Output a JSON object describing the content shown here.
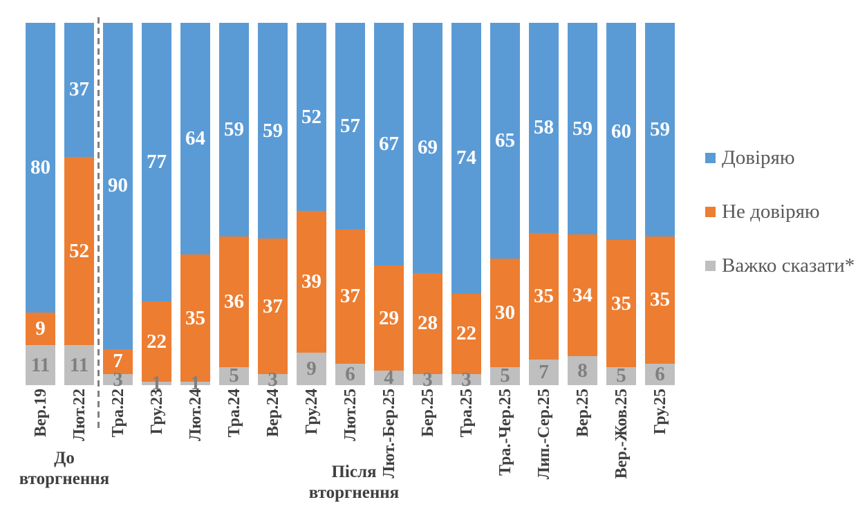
{
  "chart_data": {
    "type": "bar",
    "subtype": "stacked-100-percent",
    "title": "",
    "xlabel": "",
    "ylabel": "",
    "value_format": "percent",
    "grid": false,
    "legend_position": "right",
    "categories": [
      "Вер.19",
      "Лют.22",
      "Тра.22",
      "Гру.23",
      "Лют.24",
      "Тра.24",
      "Вер.24",
      "Гру.24",
      "Лют.25",
      "Лют.-Бер.25",
      "Бер.25",
      "Тра.25",
      "Тра.-Чер.25",
      "Лип.-Сер.25",
      "Вер.25",
      "Вер.-Жов.25",
      "Гру.25"
    ],
    "series": [
      {
        "name": "Довіряю",
        "color": "#5B9BD5",
        "label_color": "#FFFFFF",
        "values": [
          80,
          37,
          90,
          77,
          64,
          59,
          59,
          52,
          57,
          67,
          69,
          74,
          65,
          58,
          59,
          60,
          59
        ]
      },
      {
        "name": "Не довіряю",
        "color": "#ED7D31",
        "label_color": "#FFFFFF",
        "values": [
          9,
          52,
          7,
          22,
          35,
          36,
          37,
          39,
          37,
          29,
          28,
          22,
          30,
          35,
          34,
          35,
          35
        ]
      },
      {
        "name": "Важко сказати*",
        "color": "#BFBFBF",
        "label_color": "#7F7F7F",
        "values": [
          11,
          11,
          3,
          1,
          1,
          5,
          3,
          9,
          6,
          4,
          3,
          3,
          5,
          7,
          8,
          5,
          6
        ]
      }
    ],
    "separator": {
      "style": "dashed",
      "color": "#7F7F7F",
      "after_category": "Лют.22"
    },
    "annotations": [
      {
        "line1": "До",
        "line2": "вторгнення",
        "refers_to": "categories before separator"
      },
      {
        "line1": "Після",
        "line2": "вторгнення",
        "refers_to": "categories after separator"
      }
    ],
    "category_label_color": "#404040",
    "annotation_color": "#404040",
    "legend_text_color": "#595959"
  }
}
